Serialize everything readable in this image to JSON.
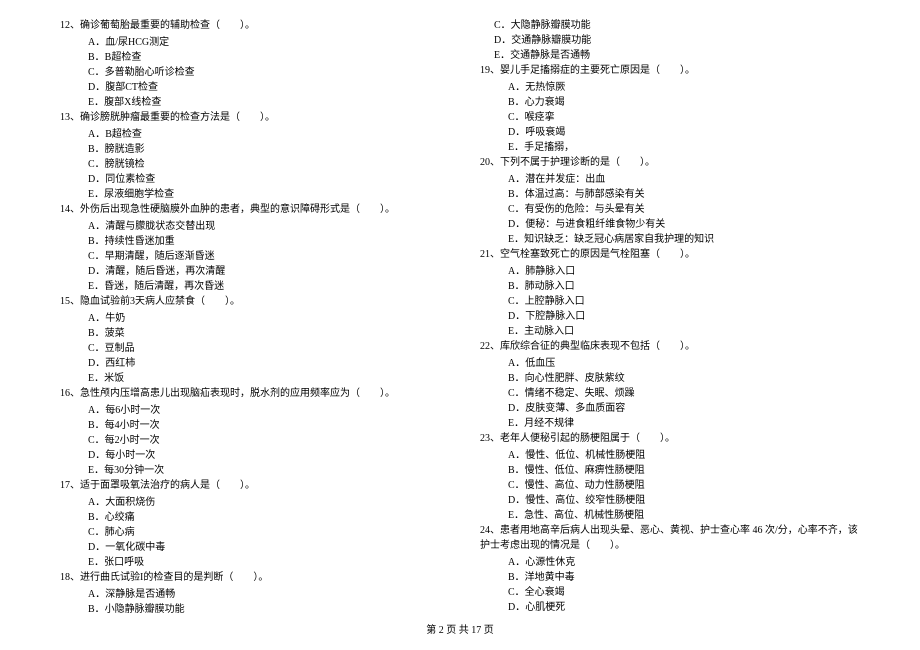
{
  "footer": "第 2 页 共 17 页",
  "left": {
    "q12": "12、确诊葡萄胎最重要的辅助检查（　　）。",
    "q12a": "A．血/尿HCG测定",
    "q12b": "B．B超检查",
    "q12c": "C．多普勒胎心听诊检查",
    "q12d": "D．腹部CT检查",
    "q12e": "E．腹部X线检查",
    "q13": "13、确诊膀胱肿瘤最重要的检查方法是（　　）。",
    "q13a": "A．B超检查",
    "q13b": "B．膀胱造影",
    "q13c": "C．膀胱镜检",
    "q13d": "D．同位素检查",
    "q13e": "E．尿液细胞学检查",
    "q14": "14、外伤后出现急性硬脑膜外血肿的患者，典型的意识障碍形式是（　　）。",
    "q14a": "A．清醒与朦胧状态交替出现",
    "q14b": "B．持续性昏迷加重",
    "q14c": "C．早期清醒，随后逐渐昏迷",
    "q14d": "D．清醒，随后昏迷，再次清醒",
    "q14e": "E．昏迷，随后清醒，再次昏迷",
    "q15": "15、隐血试验前3天病人应禁食（　　）。",
    "q15a": "A．牛奶",
    "q15b": "B．菠菜",
    "q15c": "C．豆制品",
    "q15d": "D．西红柿",
    "q15e": "E．米饭",
    "q16": "16、急性颅内压增高患儿出现脑疝表现时，脱水剂的应用频率应为（　　）。",
    "q16a": "A．每6小时一次",
    "q16b": "B．每4小时一次",
    "q16c": "C．每2小时一次",
    "q16d": "D．每小时一次",
    "q16e": "E．每30分钟一次",
    "q17": "17、适于面罩吸氧法治疗的病人是（　　）。",
    "q17a": "A．大面积烧伤",
    "q17b": "B．心绞痛",
    "q17c": "C．肺心病",
    "q17d": "D．一氧化碳中毒",
    "q17e": "E．张口呼吸",
    "q18": "18、进行曲氏试验I的检查目的是判断（　　）。",
    "q18a": "A．深静脉是否通畅",
    "q18b": "B．小隐静脉瓣膜功能"
  },
  "right": {
    "q18c": "C．大隐静脉瓣膜功能",
    "q18d": "D．交通静脉瓣膜功能",
    "q18e": "E．交通静脉是否通畅",
    "q19": "19、婴儿手足搐搦症的主要死亡原因是（　　）。",
    "q19a": "A．无热惊厥",
    "q19b": "B．心力衰竭",
    "q19c": "C．喉痉挛",
    "q19d": "D．呼吸衰竭",
    "q19e": "E．手足搐搦，",
    "q20": "20、下列不属于护理诊断的是（　　）。",
    "q20a": "A．潜在并发症：出血",
    "q20b": "B．体温过高：与肺部感染有关",
    "q20c": "C．有受伤的危险：与头晕有关",
    "q20d": "D．便秘：与进食粗纤维食物少有关",
    "q20e": "E．知识缺乏：缺乏冠心病居家自我护理的知识",
    "q21": "21、空气栓塞致死亡的原因是气栓阻塞（　　）。",
    "q21a": "A．肺静脉入口",
    "q21b": "B．肺动脉入口",
    "q21c": "C．上腔静脉入口",
    "q21d": "D．下腔静脉入口",
    "q21e": "E．主动脉入口",
    "q22": "22、库欣综合征的典型临床表现不包括（　　）。",
    "q22a": "A．低血压",
    "q22b": "B．向心性肥胖、皮肤紫纹",
    "q22c": "C．情绪不稳定、失眠、烦躁",
    "q22d": "D．皮肤变薄、多血质面容",
    "q22e": "E．月经不规律",
    "q23": "23、老年人便秘引起的肠梗阻属于（　　）。",
    "q23a": "A．慢性、低位、机械性肠梗阻",
    "q23b": "B．慢性、低位、麻痹性肠梗阻",
    "q23c": "C．慢性、高位、动力性肠梗阻",
    "q23d": "D．慢性、高位、绞窄性肠梗阻",
    "q23e": "E．急性、高位、机械性肠梗阻",
    "q24": "24、患者用地高辛后病人出现头晕、恶心、黄视、护士查心率 46 次/分，心率不齐，该护士考虑出现的情况是（　　）。",
    "q24a": "A．心源性休克",
    "q24b": "B．洋地黄中毒",
    "q24c": "C．全心衰竭",
    "q24d": "D．心肌梗死"
  }
}
